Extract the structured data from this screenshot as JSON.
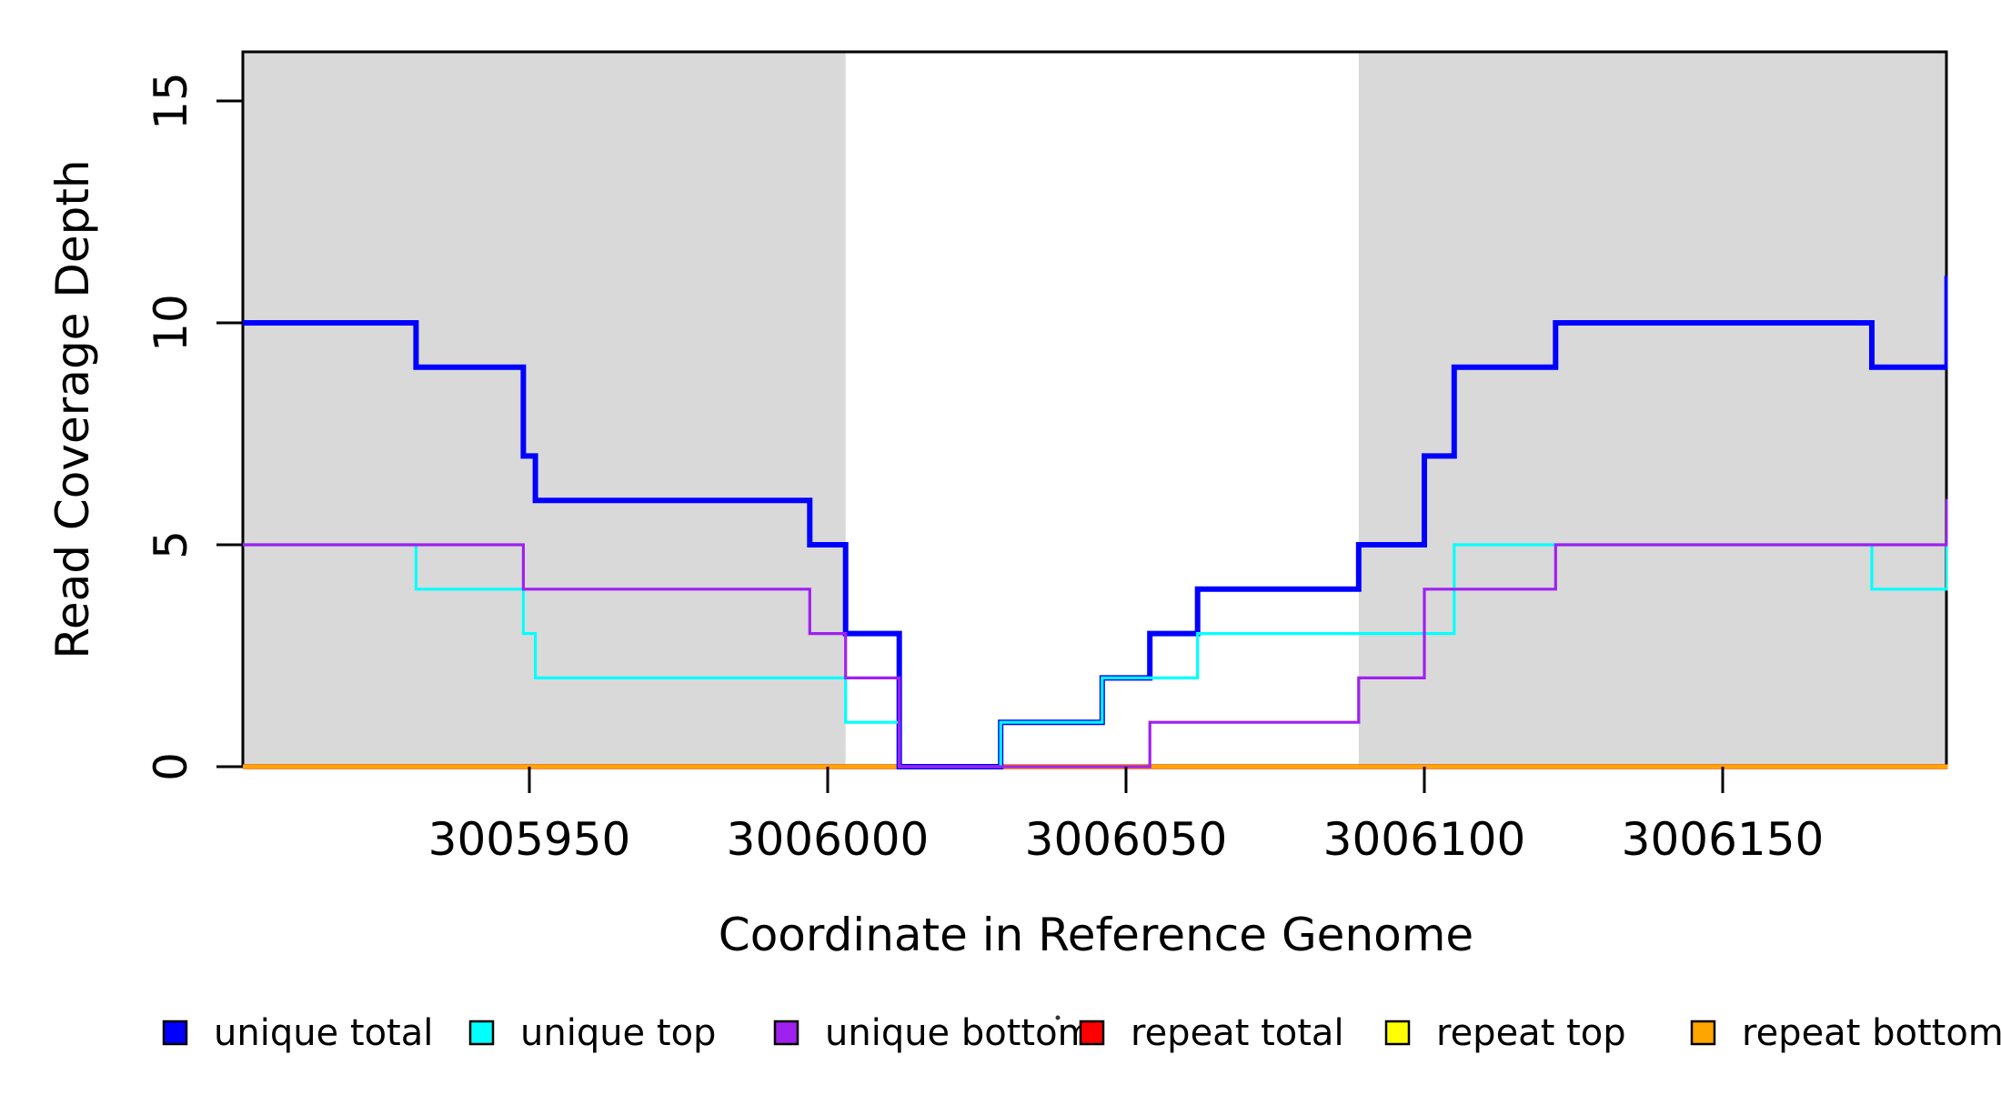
{
  "chart_data": {
    "type": "line",
    "subtype": "step-coverage-plot",
    "title": "",
    "xlabel": "Coordinate in Reference Genome",
    "ylabel": "Read Coverage Depth",
    "xlim": [
      3005902,
      3006189
    ],
    "ylim": [
      0,
      16.1
    ],
    "grid": "off",
    "xticks": [
      {
        "value": 3005950,
        "label": "3005950"
      },
      {
        "value": 3006000,
        "label": "3006000"
      },
      {
        "value": 3006050,
        "label": "3006050"
      },
      {
        "value": 3006100,
        "label": "3006100"
      },
      {
        "value": 3006150,
        "label": "3006150"
      }
    ],
    "yticks": [
      {
        "value": 0,
        "label": "0"
      },
      {
        "value": 5,
        "label": "5"
      },
      {
        "value": 10,
        "label": "10"
      },
      {
        "value": 15,
        "label": "15"
      }
    ],
    "shaded_regions": {
      "color": "#D9D9D9",
      "regions": [
        {
          "x0": 3005902,
          "x1": 3006003
        },
        {
          "x0": 3006089,
          "x1": 3006189
        }
      ]
    },
    "series": [
      {
        "name": "repeat total",
        "color": "#FF0000",
        "width": 5.5,
        "steps": [
          [
            3005902,
            0
          ]
        ],
        "x_end": 3006189
      },
      {
        "name": "repeat top",
        "color": "#FFFF00",
        "width": 4.5,
        "steps": [
          [
            3005902,
            0
          ]
        ],
        "x_end": 3006189
      },
      {
        "name": "repeat bottom",
        "color": "#FFA500",
        "width": 4.2,
        "steps": [
          [
            3005902,
            0
          ]
        ],
        "x_end": 3006189
      },
      {
        "name": "unique total",
        "color": "#0000FF",
        "width": 6,
        "steps": [
          [
            3005902,
            10
          ],
          [
            3005931,
            9
          ],
          [
            3005949,
            7
          ],
          [
            3005951,
            6
          ],
          [
            3005997,
            5
          ],
          [
            3006003,
            3
          ],
          [
            3006012,
            0
          ],
          [
            3006029,
            1
          ],
          [
            3006046,
            2
          ],
          [
            3006054,
            3
          ],
          [
            3006062,
            4
          ],
          [
            3006089,
            5
          ],
          [
            3006100,
            7
          ],
          [
            3006105,
            9
          ],
          [
            3006122,
            10
          ],
          [
            3006175,
            9
          ],
          [
            3006187.6,
            11
          ]
        ],
        "x_end": 3006189
      },
      {
        "name": "unique top",
        "color": "#00FFFF",
        "width": 3.2,
        "steps": [
          [
            3005902,
            5
          ],
          [
            3005931,
            4
          ],
          [
            3005949,
            3
          ],
          [
            3005951,
            2
          ],
          [
            3006003,
            1
          ],
          [
            3006012,
            0
          ],
          [
            3006029,
            1
          ],
          [
            3006046,
            2
          ],
          [
            3006062,
            3
          ],
          [
            3006105,
            5
          ],
          [
            3006175,
            4
          ],
          [
            3006187.6,
            5
          ]
        ],
        "x_end": 3006189
      },
      {
        "name": "unique bottom",
        "color": "#A020F0",
        "width": 3.2,
        "steps": [
          [
            3005902,
            5
          ],
          [
            3005949,
            4
          ],
          [
            3005997,
            3
          ],
          [
            3006003,
            2
          ],
          [
            3006012,
            0
          ],
          [
            3006054,
            1
          ],
          [
            3006089,
            2
          ],
          [
            3006100,
            4
          ],
          [
            3006122,
            5
          ],
          [
            3006187.6,
            6
          ]
        ],
        "x_end": 3006189
      }
    ],
    "legend": {
      "position": "bottom",
      "items": [
        {
          "label": "unique total",
          "color": "#0000FF"
        },
        {
          "label": "unique top",
          "color": "#00FFFF"
        },
        {
          "label": "unique bottom",
          "color": "#A020F0"
        },
        {
          "label": "repeat total",
          "color": "#FF0000"
        },
        {
          "label": "repeat top",
          "color": "#FFFF00"
        },
        {
          "label": "repeat bottom",
          "color": "#FFA500"
        }
      ]
    },
    "frame_color": "#000000",
    "background_color": "#FFFFFF"
  }
}
